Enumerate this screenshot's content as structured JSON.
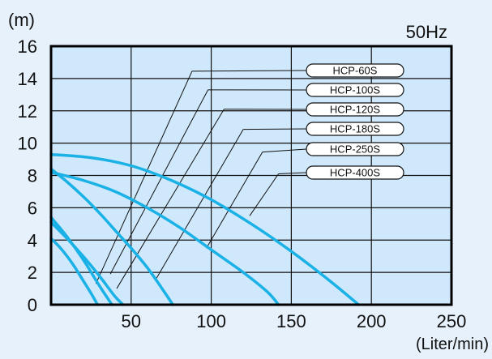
{
  "chart_data": {
    "type": "line",
    "frequency_label": "50Hz",
    "ylabel": "(m)",
    "xlabel": "(Liter/min)",
    "xlim": [
      0,
      250
    ],
    "ylim": [
      0,
      16
    ],
    "xticks": [
      50,
      100,
      150,
      200,
      250
    ],
    "yticks": [
      0,
      2,
      4,
      6,
      8,
      10,
      12,
      14,
      16
    ],
    "grid": true,
    "colors": {
      "curve": "#1ab2e6",
      "plot_bg": "#cfe8fb",
      "frame": "#000000",
      "page_bg": "#e7f1fc"
    },
    "series": [
      {
        "name": "HCP-60S",
        "x": [
          0,
          5,
          10,
          15,
          20,
          25,
          29
        ],
        "y": [
          4.1,
          3.6,
          3.0,
          2.3,
          1.5,
          0.7,
          0
        ]
      },
      {
        "name": "HCP-100S",
        "x": [
          0,
          10,
          20,
          30,
          38
        ],
        "y": [
          5.4,
          4.2,
          2.8,
          1.2,
          0
        ]
      },
      {
        "name": "HCP-120S",
        "x": [
          0,
          10,
          20,
          30,
          40,
          45
        ],
        "y": [
          5.1,
          4.1,
          3.0,
          1.8,
          0.5,
          0
        ]
      },
      {
        "name": "HCP-180S",
        "x": [
          0,
          10,
          20,
          30,
          40,
          50,
          60,
          70,
          76
        ],
        "y": [
          8.4,
          7.6,
          6.7,
          5.7,
          4.6,
          3.5,
          2.3,
          0.9,
          0
        ]
      },
      {
        "name": "HCP-250S",
        "x": [
          0,
          20,
          40,
          60,
          80,
          100,
          120,
          135,
          142
        ],
        "y": [
          8.2,
          7.7,
          7.0,
          6.0,
          4.8,
          3.4,
          2.0,
          0.8,
          0
        ]
      },
      {
        "name": "HCP-400S",
        "x": [
          0,
          25,
          50,
          75,
          100,
          125,
          150,
          175,
          192
        ],
        "y": [
          9.3,
          9.1,
          8.6,
          7.7,
          6.5,
          5.0,
          3.3,
          1.4,
          0
        ]
      }
    ],
    "legend_labels": [
      "HCP-60S",
      "HCP-100S",
      "HCP-120S",
      "HCP-180S",
      "HCP-250S",
      "HCP-400S"
    ]
  }
}
